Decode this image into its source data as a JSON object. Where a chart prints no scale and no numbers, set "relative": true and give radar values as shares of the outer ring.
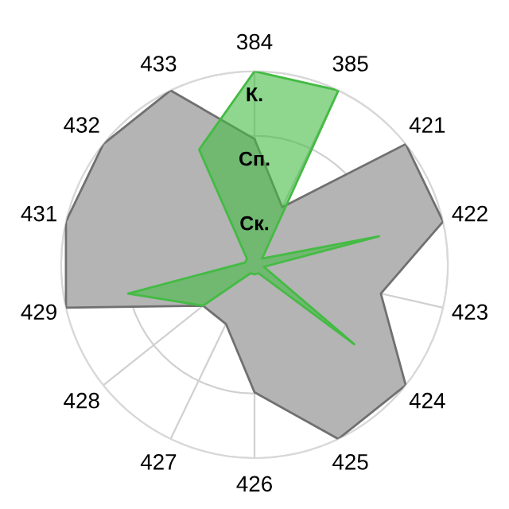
{
  "chart_data": {
    "type": "radar",
    "relative": true,
    "grid": true,
    "legend": false,
    "categories": [
      "384",
      "385",
      "421",
      "422",
      "423",
      "424",
      "425",
      "426",
      "427",
      "428",
      "429",
      "431",
      "432",
      "433"
    ],
    "series": [
      {
        "color": "#b4b4b4",
        "values": [
          0.65,
          0.33,
          1.0,
          1.0,
          0.67,
          1.0,
          1.0,
          0.66,
          0.34,
          0.34,
          1.0,
          1.0,
          1.0,
          1.0
        ]
      },
      {
        "color": "#44bb44",
        "values": [
          1.0,
          1.0,
          0.05,
          0.66,
          0.05,
          0.66,
          0.05,
          0.05,
          0.05,
          0.34,
          0.67,
          0.05,
          0.05,
          0.66
        ]
      }
    ],
    "annotations": [
      "Ск.",
      "Сп.",
      "К."
    ]
  }
}
